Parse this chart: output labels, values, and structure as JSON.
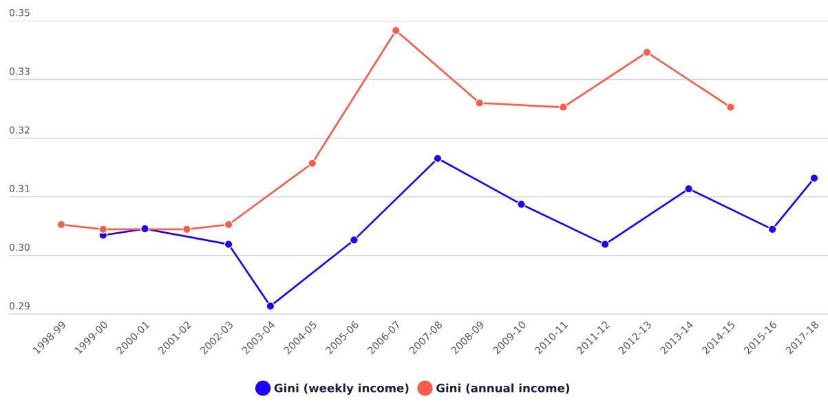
{
  "chart_data": {
    "type": "line",
    "categories": [
      "1998-99",
      "1999-00",
      "2000-01",
      "2001-02",
      "2002-03",
      "2003-04",
      "2004-05",
      "2005-06",
      "2006-07",
      "2007-08",
      "2008-09",
      "2009-10",
      "2010-11",
      "2011-12",
      "2012-13",
      "2013-14",
      "2014-15",
      "2015-16",
      "2017-18"
    ],
    "series": [
      {
        "name": "Gini (weekly income)",
        "color": "#1f00ff",
        "values": [
          null,
          0.3048,
          0.306,
          null,
          0.3031,
          0.2915,
          null,
          0.3039,
          null,
          0.3192,
          null,
          0.3106,
          null,
          0.3031,
          null,
          0.3135,
          null,
          0.3059,
          0.3155
        ]
      },
      {
        "name": "Gini (annual income)",
        "color": "#ff5b4b",
        "values": [
          0.3068,
          0.3059,
          null,
          0.3059,
          0.3068,
          null,
          0.3183,
          null,
          0.3432,
          null,
          0.3296,
          null,
          0.3288,
          null,
          0.3391,
          null,
          0.3288,
          null,
          null
        ]
      }
    ],
    "ylim": [
      0.29,
      0.345
    ],
    "yticks": [
      0.29,
      {
        "value": 0.301,
        "label": "0.30"
      },
      {
        "value": 0.312,
        "label": "0.31"
      },
      {
        "value": 0.323,
        "label": "0.32"
      },
      {
        "value": 0.334,
        "label": "0.33"
      },
      {
        "value": 0.345,
        "label": "0.35"
      }
    ],
    "grid": "y",
    "legend": "bottom",
    "marker": "circle",
    "line_style": "solid"
  }
}
